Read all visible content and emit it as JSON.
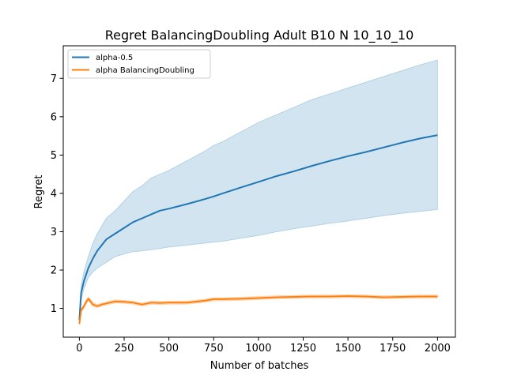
{
  "chart_data": {
    "type": "line",
    "title": "Regret BalancingDoubling Adult B10 N 10_10_10",
    "xlabel": "Number of batches",
    "ylabel": "Regret",
    "xlim": [
      -90,
      2100
    ],
    "ylim": [
      0.25,
      7.85
    ],
    "xticks": [
      0,
      250,
      500,
      750,
      1000,
      1250,
      1500,
      1750,
      2000
    ],
    "yticks": [
      1,
      2,
      3,
      4,
      5,
      6,
      7
    ],
    "grid": false,
    "legend_position": "top-left",
    "series": [
      {
        "name": "alpha-0.5",
        "color": "#1f77b4",
        "band_color": "#1f77b4",
        "x": [
          0,
          10,
          25,
          50,
          75,
          100,
          150,
          200,
          250,
          300,
          350,
          400,
          450,
          500,
          600,
          700,
          750,
          800,
          900,
          1000,
          1100,
          1200,
          1300,
          1400,
          1500,
          1600,
          1700,
          1800,
          1900,
          2000
        ],
        "values": [
          0.7,
          1.4,
          1.7,
          2.05,
          2.3,
          2.5,
          2.8,
          2.95,
          3.1,
          3.25,
          3.35,
          3.45,
          3.55,
          3.6,
          3.72,
          3.85,
          3.92,
          4.0,
          4.15,
          4.3,
          4.45,
          4.58,
          4.72,
          4.85,
          4.97,
          5.08,
          5.2,
          5.32,
          5.43,
          5.52
        ],
        "lower": [
          0.62,
          1.2,
          1.5,
          1.8,
          1.95,
          2.05,
          2.2,
          2.35,
          2.42,
          2.48,
          2.5,
          2.53,
          2.56,
          2.6,
          2.65,
          2.7,
          2.73,
          2.75,
          2.83,
          2.9,
          3.0,
          3.08,
          3.15,
          3.22,
          3.28,
          3.35,
          3.42,
          3.48,
          3.53,
          3.58
        ],
        "upper": [
          0.8,
          1.6,
          1.95,
          2.35,
          2.7,
          2.95,
          3.35,
          3.55,
          3.8,
          4.05,
          4.2,
          4.4,
          4.5,
          4.6,
          4.85,
          5.1,
          5.25,
          5.35,
          5.6,
          5.85,
          6.05,
          6.25,
          6.45,
          6.6,
          6.75,
          6.9,
          7.05,
          7.2,
          7.35,
          7.48
        ]
      },
      {
        "name": "alpha BalancingDoubling",
        "color": "#ff7f0e",
        "band_color": "#ff7f0e",
        "x": [
          0,
          10,
          25,
          40,
          50,
          60,
          75,
          100,
          125,
          150,
          200,
          250,
          300,
          350,
          400,
          450,
          500,
          600,
          700,
          750,
          800,
          900,
          1000,
          1100,
          1200,
          1300,
          1400,
          1500,
          1600,
          1700,
          1800,
          1900,
          2000
        ],
        "values": [
          0.6,
          0.95,
          1.05,
          1.18,
          1.25,
          1.2,
          1.1,
          1.06,
          1.1,
          1.13,
          1.18,
          1.17,
          1.15,
          1.1,
          1.15,
          1.14,
          1.15,
          1.15,
          1.2,
          1.24,
          1.24,
          1.25,
          1.27,
          1.29,
          1.3,
          1.31,
          1.31,
          1.32,
          1.31,
          1.29,
          1.3,
          1.31,
          1.31
        ],
        "lower": [
          0.56,
          0.9,
          1.0,
          1.13,
          1.2,
          1.15,
          1.05,
          1.02,
          1.06,
          1.09,
          1.14,
          1.13,
          1.11,
          1.06,
          1.11,
          1.1,
          1.11,
          1.11,
          1.16,
          1.2,
          1.2,
          1.21,
          1.23,
          1.25,
          1.26,
          1.27,
          1.27,
          1.28,
          1.27,
          1.25,
          1.26,
          1.27,
          1.27
        ],
        "upper": [
          0.64,
          1.0,
          1.1,
          1.23,
          1.3,
          1.25,
          1.15,
          1.1,
          1.14,
          1.17,
          1.22,
          1.21,
          1.19,
          1.14,
          1.19,
          1.18,
          1.19,
          1.19,
          1.24,
          1.28,
          1.28,
          1.29,
          1.31,
          1.33,
          1.34,
          1.35,
          1.35,
          1.36,
          1.35,
          1.33,
          1.34,
          1.35,
          1.35
        ]
      }
    ]
  }
}
